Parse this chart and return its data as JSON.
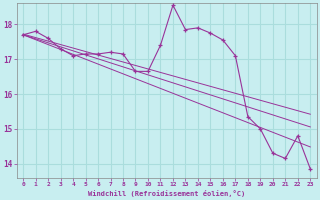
{
  "x": [
    0,
    1,
    2,
    3,
    4,
    5,
    6,
    7,
    8,
    9,
    10,
    11,
    12,
    13,
    14,
    15,
    16,
    17,
    18,
    19,
    20,
    21,
    22,
    23
  ],
  "y_main": [
    17.7,
    17.8,
    17.6,
    17.3,
    17.1,
    17.15,
    17.15,
    17.2,
    17.15,
    16.65,
    16.65,
    17.4,
    18.55,
    17.85,
    17.9,
    17.75,
    17.55,
    17.1,
    15.35,
    15.0,
    14.3,
    14.15,
    14.8,
    13.85
  ],
  "y_linear1": [
    17.72,
    17.62,
    17.52,
    17.42,
    17.32,
    17.22,
    17.12,
    17.02,
    16.92,
    16.82,
    16.72,
    16.62,
    16.52,
    16.42,
    16.32,
    16.22,
    16.12,
    16.02,
    15.92,
    15.82,
    15.72,
    15.62,
    15.52,
    15.42
  ],
  "y_linear2": [
    17.7,
    17.585,
    17.47,
    17.355,
    17.24,
    17.125,
    17.01,
    16.895,
    16.78,
    16.665,
    16.55,
    16.435,
    16.32,
    16.205,
    16.09,
    15.975,
    15.86,
    15.745,
    15.63,
    15.515,
    15.4,
    15.285,
    15.17,
    15.055
  ],
  "y_linear3": [
    17.7,
    17.56,
    17.42,
    17.28,
    17.14,
    17.0,
    16.86,
    16.72,
    16.58,
    16.44,
    16.3,
    16.16,
    16.02,
    15.88,
    15.74,
    15.6,
    15.46,
    15.32,
    15.18,
    15.04,
    14.9,
    14.76,
    14.62,
    14.48
  ],
  "line_color": "#993399",
  "bg_color": "#c8eef0",
  "grid_color": "#aadddd",
  "ylabel_ticks": [
    14,
    15,
    16,
    17,
    18
  ],
  "xlim": [
    -0.5,
    23.5
  ],
  "ylim": [
    13.6,
    18.6
  ],
  "xlabel": "Windchill (Refroidissement éolien,°C)"
}
